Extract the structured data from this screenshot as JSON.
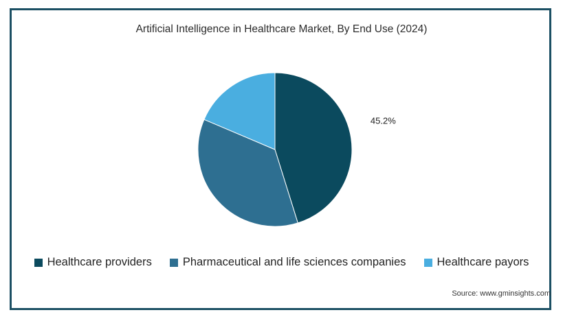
{
  "chart_data": {
    "type": "pie",
    "title": "Artificial Intelligence in Healthcare Market, By End Use (2024)",
    "slices": [
      {
        "name": "Healthcare providers",
        "value": 45.2,
        "label": "45.2%",
        "color": "#0b4a5e"
      },
      {
        "name": "Pharmaceutical and life sciences companies",
        "value": 36.2,
        "label": "",
        "color": "#2e6f91"
      },
      {
        "name": "Healthcare payors",
        "value": 18.6,
        "label": "",
        "color": "#4aaee0"
      }
    ],
    "legend_position": "bottom",
    "source": "Source: www.gminsights.com"
  }
}
